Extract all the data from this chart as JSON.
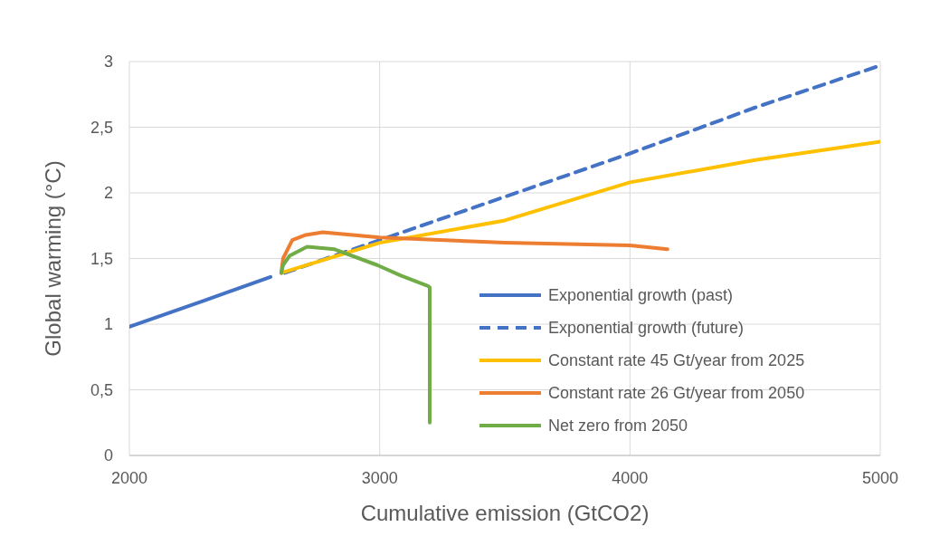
{
  "chart_data": {
    "type": "line",
    "xlabel": "Cumulative emission (GtCO2)",
    "ylabel": "Global warming (°C)",
    "xlim": [
      2000,
      5000
    ],
    "xticks": [
      2000,
      3000,
      4000,
      5000
    ],
    "ylim": [
      0,
      3
    ],
    "yticks": [
      0,
      {
        "value": 0.5,
        "label": "0,5"
      },
      1,
      {
        "value": 1.5,
        "label": "1,5"
      },
      2,
      {
        "value": 2.5,
        "label": "2,5"
      },
      3
    ],
    "grid": true,
    "legend": "bottom right",
    "marker": "none",
    "series": [
      {
        "name": "Exponential growth (past)",
        "color": "#4472c4",
        "line_style": "solid",
        "x": [
          2000,
          2300,
          2564
        ],
        "values": [
          0.98,
          1.18,
          1.36
        ]
      },
      {
        "name": "Exponential growth (future)",
        "color": "#4472c4",
        "line_style": "dashed",
        "x": [
          2620,
          3000,
          3500,
          4000,
          4500,
          5000
        ],
        "values": [
          1.39,
          1.64,
          1.97,
          2.3,
          2.65,
          2.97
        ]
      },
      {
        "name": "Constant rate 45 Gt/year from 2025",
        "color": "#ffc000",
        "line_style": "solid",
        "x": [
          2607,
          3000,
          3500,
          4000,
          4500,
          5000
        ],
        "values": [
          1.39,
          1.62,
          1.79,
          2.08,
          2.25,
          2.39
        ]
      },
      {
        "name": "Constant rate 26 Gt/year from 2050",
        "color": "#ed7d31",
        "line_style": "solid",
        "x": [
          2607,
          2614,
          2651,
          2705,
          2773,
          3000,
          3500,
          4000,
          4150
        ],
        "values": [
          1.39,
          1.5,
          1.64,
          1.68,
          1.7,
          1.66,
          1.62,
          1.6,
          1.57
        ]
      },
      {
        "name": "Net zero from 2050",
        "color": "#70ad47",
        "line_style": "solid",
        "x": [
          2607,
          2614,
          2640,
          2710,
          2820,
          2990,
          3085,
          3193,
          3200,
          3200
        ],
        "values": [
          1.39,
          1.45,
          1.52,
          1.59,
          1.57,
          1.45,
          1.37,
          1.29,
          1.28,
          0.25
        ]
      }
    ]
  }
}
